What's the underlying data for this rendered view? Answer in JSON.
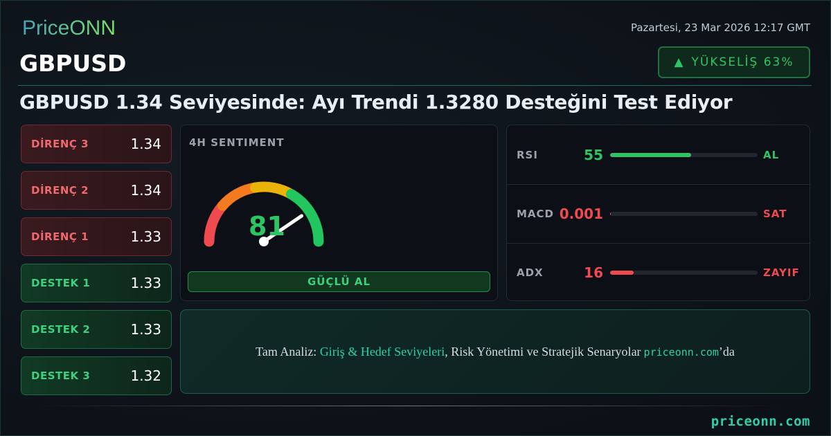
{
  "brand": {
    "logo": "PriceONN",
    "footer_site": "priceonn.com"
  },
  "header": {
    "date": "Pazartesi, 23 Mar 2026 12:17 GMT",
    "pair": "GBPUSD",
    "trend_label": "YÜKSELİŞ 63%",
    "trend_icon": "▲",
    "headline": "GBPUSD 1.34 Seviyesinde: Ayı Trendi 1.3280 Desteğini Test Ediyor"
  },
  "levels": [
    {
      "label": "DİRENÇ 3",
      "value": "1.34",
      "type": "resistance"
    },
    {
      "label": "DİRENÇ 2",
      "value": "1.34",
      "type": "resistance"
    },
    {
      "label": "DİRENÇ 1",
      "value": "1.33",
      "type": "resistance"
    },
    {
      "label": "DESTEK 1",
      "value": "1.33",
      "type": "support"
    },
    {
      "label": "DESTEK 2",
      "value": "1.33",
      "type": "support"
    },
    {
      "label": "DESTEK 3",
      "value": "1.32",
      "type": "support"
    }
  ],
  "sentiment": {
    "title": "4H SENTIMENT",
    "score": "81",
    "score_value": 81,
    "verdict": "GÜÇLÜ AL"
  },
  "indicators": [
    {
      "name": "RSI",
      "value": "55",
      "signal": "AL",
      "fill_pct": 55,
      "color": "#2fc463"
    },
    {
      "name": "MACD",
      "value": "0.001",
      "signal": "SAT",
      "fill_pct": 0.5,
      "color": "#ee4a4f"
    },
    {
      "name": "ADX",
      "value": "16",
      "signal": "ZAYIF",
      "fill_pct": 16,
      "color": "#ee4a4f"
    }
  ],
  "cta": {
    "prefix": "Tam Analiz: ",
    "highlight": "Giriş & Hedef Seviyeleri",
    "middle": ", Risk Yönetimi ve Stratejik Senaryolar",
    "site": "priceonn.com",
    "suffix": "’da"
  },
  "colors": {
    "bull": "#2fc463",
    "bear": "#ee4a4f",
    "accent": "#2fd0a8"
  }
}
